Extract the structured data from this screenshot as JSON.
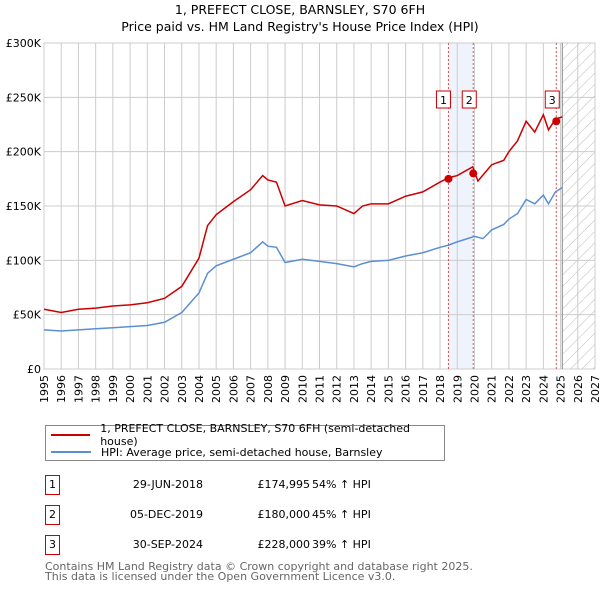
{
  "chart_data": {
    "type": "line",
    "title": "1, PREFECT CLOSE, BARNSLEY, S70 6FH",
    "subtitle": "Price paid vs. HM Land Registry's House Price Index (HPI)",
    "xlim": [
      1995,
      2027
    ],
    "ylim": [
      0,
      300000
    ],
    "y_ticks": [
      {
        "v": 0,
        "label": "£0"
      },
      {
        "v": 50000,
        "label": "£50K"
      },
      {
        "v": 100000,
        "label": "£100K"
      },
      {
        "v": 150000,
        "label": "£150K"
      },
      {
        "v": 200000,
        "label": "£200K"
      },
      {
        "v": 250000,
        "label": "£250K"
      },
      {
        "v": 300000,
        "label": "£300K"
      }
    ],
    "x_ticks": [
      "1995",
      "1996",
      "1997",
      "1998",
      "1999",
      "2000",
      "2001",
      "2002",
      "2003",
      "2004",
      "2005",
      "2006",
      "2007",
      "2008",
      "2009",
      "2010",
      "2011",
      "2012",
      "2013",
      "2014",
      "2015",
      "2016",
      "2017",
      "2018",
      "2019",
      "2020",
      "2021",
      "2022",
      "2023",
      "2024",
      "2025",
      "2026",
      "2027"
    ],
    "grid": true,
    "series": [
      {
        "name": "1, PREFECT CLOSE, BARNSLEY, S70 6FH (semi-detached house)",
        "color": "#cc0000",
        "x": [
          1995,
          1996,
          1997,
          1998,
          1999,
          2000,
          2001,
          2002,
          2003,
          2004,
          2004.5,
          2005,
          2006,
          2007,
          2007.7,
          2008,
          2008.5,
          2009,
          2010,
          2011,
          2012,
          2013,
          2013.5,
          2014,
          2015,
          2016,
          2017,
          2018,
          2018.5,
          2019,
          2019.9,
          2020.2,
          2021,
          2021.7,
          2022,
          2022.5,
          2023,
          2023.5,
          2024,
          2024.3,
          2024.7,
          2025.1
        ],
        "y": [
          55000,
          52000,
          55000,
          56000,
          58000,
          59000,
          61000,
          65000,
          76000,
          102000,
          132000,
          142000,
          154000,
          165000,
          178000,
          174000,
          172000,
          150000,
          155000,
          151000,
          150000,
          143000,
          150000,
          152000,
          152000,
          159000,
          163000,
          172000,
          176000,
          178000,
          186000,
          173000,
          188000,
          192000,
          200000,
          210000,
          228000,
          218000,
          234000,
          220000,
          230000,
          232000
        ]
      },
      {
        "name": "HPI: Average price, semi-detached house, Barnsley",
        "color": "#5b8fd4",
        "x": [
          1995,
          1996,
          1997,
          1998,
          1999,
          2000,
          2001,
          2002,
          2003,
          2004,
          2004.5,
          2005,
          2006,
          2007,
          2007.7,
          2008,
          2008.5,
          2009,
          2010,
          2011,
          2012,
          2013,
          2013.5,
          2014,
          2015,
          2016,
          2017,
          2018,
          2018.5,
          2019,
          2020,
          2020.5,
          2021,
          2021.7,
          2022,
          2022.5,
          2023,
          2023.5,
          2024,
          2024.3,
          2024.7,
          2025.1
        ],
        "y": [
          36000,
          35000,
          36000,
          37000,
          38000,
          39000,
          40000,
          43000,
          52000,
          70000,
          88000,
          95000,
          101000,
          107000,
          117000,
          113000,
          112000,
          98000,
          101000,
          99000,
          97000,
          94000,
          97000,
          99000,
          100000,
          104000,
          107000,
          112000,
          114000,
          117000,
          122000,
          120000,
          128000,
          133000,
          138000,
          143000,
          156000,
          152000,
          160000,
          152000,
          163000,
          167000
        ]
      }
    ],
    "sales": [
      {
        "id": "1",
        "x": 2018.49,
        "y": 174995,
        "date": "29-JUN-2018",
        "price": "£174,995",
        "hpi": "54% ↑ HPI"
      },
      {
        "id": "2",
        "x": 2019.93,
        "y": 180000,
        "date": "05-DEC-2019",
        "price": "£180,000",
        "hpi": "45% ↑ HPI"
      },
      {
        "id": "3",
        "x": 2024.75,
        "y": 228000,
        "date": "30-SEP-2024",
        "price": "£228,000",
        "hpi": "39% ↑ HPI"
      }
    ],
    "shaded_range": [
      2018.49,
      2019.93
    ],
    "forecast_start": 2025.1,
    "legend_position": "below"
  },
  "footer": {
    "line1": "Contains HM Land Registry data © Crown copyright and database right 2025.",
    "line2": "This data is licensed under the Open Government Licence v3.0."
  }
}
